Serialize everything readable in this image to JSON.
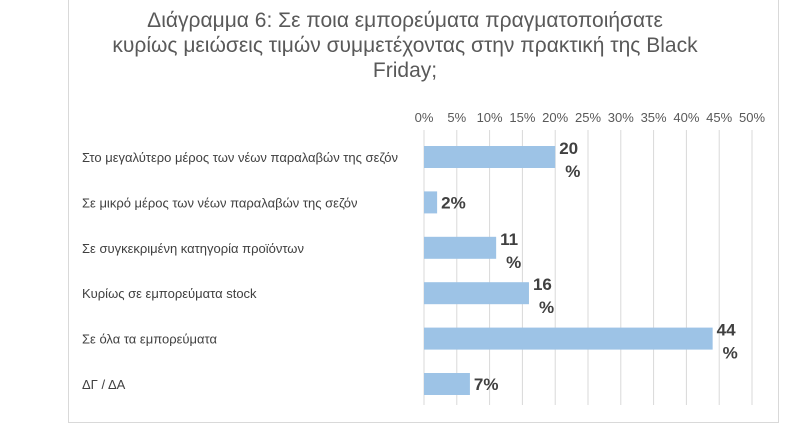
{
  "chart_data": {
    "type": "bar",
    "orientation": "horizontal",
    "title_lines": [
      "Διάγραμμα 6: Σε ποια εμπορεύματα πραγματοποιήσατε",
      "κυρίως μειώσεις τιμών συμμετέχοντας στην πρακτική της Black",
      "Friday;"
    ],
    "categories": [
      "Στο μεγαλύτερο μέρος των νέων παραλαβών της σεζόν",
      "Σε μικρό μέρος των νέων παραλαβών της σεζόν",
      "Σε συγκεκριμένη κατηγορία προϊόντων",
      "Κυρίως σε εμπορεύματα stock",
      "Σε όλα τα εμπορεύματα",
      "ΔΓ / ΔΑ"
    ],
    "values": [
      20,
      2,
      11,
      16,
      44,
      7
    ],
    "data_labels": [
      [
        "20",
        "%"
      ],
      [
        "2%"
      ],
      [
        "11",
        "%"
      ],
      [
        "16",
        "%"
      ],
      [
        "44",
        "%"
      ],
      [
        "7%"
      ]
    ],
    "xlim": [
      0,
      50
    ],
    "ticks": [
      "0%",
      "5%",
      "10%",
      "15%",
      "20%",
      "25%",
      "30%",
      "35%",
      "40%",
      "45%",
      "50%"
    ],
    "tick_values": [
      0,
      5,
      10,
      15,
      20,
      25,
      30,
      35,
      40,
      45,
      50
    ],
    "x_axis_position": "top",
    "grid": true,
    "bar_color": "#9dc3e6",
    "grid_color": "#d9d9d9"
  }
}
